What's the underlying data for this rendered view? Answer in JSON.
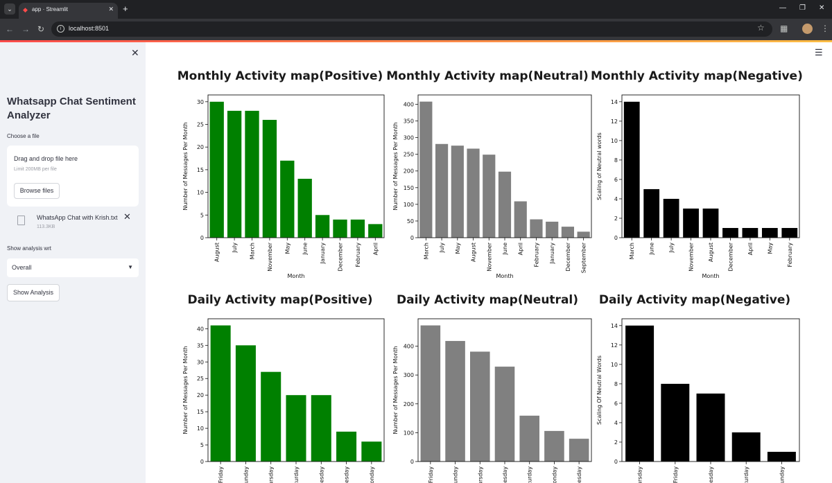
{
  "browser": {
    "tab_title": "app · Streamlit",
    "url": "localhost:8501"
  },
  "sidebar": {
    "title": "Whatsapp Chat Sentiment Analyzer",
    "file_label": "Choose a file",
    "dropzone_text": "Drag and drop file here",
    "limit_text": "Limit 200MB per file",
    "browse_label": "Browse files",
    "file_name": "WhatsApp Chat with Krish.txt",
    "file_size": "113.3KB",
    "analysis_label": "Show analysis wrt",
    "analysis_selected": "Overall",
    "show_button": "Show Analysis"
  },
  "colors": {
    "positive": "#008000",
    "neutral": "#808080",
    "negative": "#000000"
  },
  "chart_data": [
    {
      "type": "bar",
      "title": "Monthly Activity map(Positive)",
      "xlabel": "Month",
      "ylabel": "Number of Messages Per Month",
      "categories": [
        "August",
        "July",
        "March",
        "November",
        "May",
        "June",
        "January",
        "December",
        "February",
        "April"
      ],
      "values": [
        30,
        28,
        28,
        26,
        17,
        13,
        5,
        4,
        4,
        3
      ],
      "ylim": [
        0,
        31.5
      ],
      "yticks": [
        0,
        5,
        10,
        15,
        20,
        25,
        30
      ],
      "color": "#008000"
    },
    {
      "type": "bar",
      "title": "Monthly Activity map(Neutral)",
      "xlabel": "Month",
      "ylabel": "Number of Messages Per Month",
      "categories": [
        "March",
        "July",
        "May",
        "August",
        "November",
        "June",
        "April",
        "February",
        "January",
        "December",
        "September"
      ],
      "values": [
        408,
        281,
        276,
        267,
        249,
        198,
        109,
        55,
        48,
        33,
        18
      ],
      "ylim": [
        0,
        428
      ],
      "yticks": [
        0,
        50,
        100,
        150,
        200,
        250,
        300,
        350,
        400
      ],
      "color": "#808080"
    },
    {
      "type": "bar",
      "title": "Monthly Activity map(Negative)",
      "xlabel": "Month",
      "ylabel": "Scaling of Neutral words",
      "categories": [
        "March",
        "June",
        "July",
        "November",
        "August",
        "December",
        "April",
        "May",
        "February"
      ],
      "values": [
        14,
        5,
        4,
        3,
        3,
        1,
        1,
        1,
        1
      ],
      "ylim": [
        0,
        14.7
      ],
      "yticks": [
        0,
        2,
        4,
        6,
        8,
        10,
        12,
        14
      ],
      "color": "#000000"
    },
    {
      "type": "bar",
      "title": "Daily Activity map(Positive)",
      "xlabel": "",
      "ylabel": "Number of Messages Per Month",
      "categories": [
        "Friday",
        "unday",
        "ursday",
        "turday",
        "uesday",
        "esday",
        "onday"
      ],
      "values": [
        41,
        35,
        27,
        20,
        20,
        9,
        6
      ],
      "ylim": [
        0,
        43
      ],
      "yticks": [
        0,
        5,
        10,
        15,
        20,
        25,
        30,
        35,
        40
      ],
      "color": "#008000"
    },
    {
      "type": "bar",
      "title": "Daily Activity map(Neutral)",
      "xlabel": "",
      "ylabel": "Number of Messages Per Month",
      "categories": [
        "Friday",
        "Sunday",
        "hursday",
        "Tuesday",
        "aturday",
        "Monday",
        "inesday"
      ],
      "values": [
        472,
        418,
        381,
        329,
        159,
        106,
        79
      ],
      "ylim": [
        0,
        495
      ],
      "yticks": [
        0,
        100,
        200,
        300,
        400
      ],
      "color": "#808080"
    },
    {
      "type": "bar",
      "title": "Daily Activity map(Negative)",
      "xlabel": "",
      "ylabel": "Scaling Of Neutral Words",
      "categories": [
        "ursday",
        "Friday",
        "esday",
        "turday",
        "unday"
      ],
      "values": [
        14,
        8,
        7,
        3,
        1
      ],
      "ylim": [
        0,
        14.7
      ],
      "yticks": [
        0,
        2,
        4,
        6,
        8,
        10,
        12,
        14
      ],
      "color": "#000000"
    }
  ]
}
